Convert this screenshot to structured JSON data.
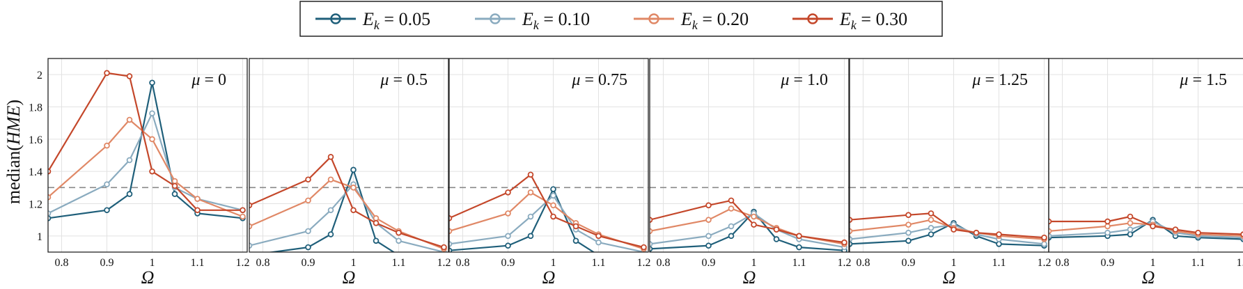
{
  "legend": {
    "placement": "top-center",
    "entries": [
      {
        "var": "E",
        "sub": "k",
        "eq": " = ",
        "val": "0.05",
        "color": "#1f5f7a"
      },
      {
        "var": "E",
        "sub": "k",
        "eq": " = ",
        "val": "0.10",
        "color": "#8aabbf"
      },
      {
        "var": "E",
        "sub": "k",
        "eq": " = ",
        "val": "0.20",
        "color": "#e08866"
      },
      {
        "var": "E",
        "sub": "k",
        "eq": " = ",
        "val": "0.30",
        "color": "#c4472a"
      }
    ]
  },
  "ylabel": {
    "pre": "median(",
    "italic": "HME",
    "post": ")"
  },
  "chart_data": [
    {
      "type": "line",
      "panel_label": "μ = 0",
      "xlabel": "Ω",
      "xlim": [
        0.77,
        1.21
      ],
      "ylim": [
        0.9,
        2.1
      ],
      "xticks": [
        "0.8",
        "0.9",
        "1",
        "1.1",
        "1.2"
      ],
      "yticks": [
        "1",
        "1.2",
        "1.4",
        "1.6",
        "1.8",
        "2"
      ],
      "reference_line": 1.3,
      "grid": true,
      "x": [
        0.77,
        0.9,
        0.95,
        1.0,
        1.05,
        1.1,
        1.2
      ],
      "series": [
        {
          "values": [
            1.11,
            1.16,
            1.26,
            1.95,
            1.26,
            1.14,
            1.11
          ]
        },
        {
          "values": [
            1.14,
            1.32,
            1.47,
            1.76,
            1.3,
            1.23,
            1.16
          ]
        },
        {
          "values": [
            1.24,
            1.56,
            1.72,
            1.6,
            1.34,
            1.23,
            1.12
          ]
        },
        {
          "values": [
            1.4,
            2.01,
            1.99,
            1.4,
            1.31,
            1.16,
            1.16
          ]
        }
      ]
    },
    {
      "type": "line",
      "panel_label": "μ = 0.5",
      "xlabel": "Ω",
      "xlim": [
        0.77,
        1.21
      ],
      "ylim": [
        0.9,
        2.1
      ],
      "xticks": [
        "0.8",
        "0.9",
        "1",
        "1.1",
        "1.2"
      ],
      "reference_line": 1.3,
      "grid": true,
      "x": [
        0.77,
        0.9,
        0.95,
        1.0,
        1.05,
        1.1,
        1.2
      ],
      "series": [
        {
          "values": [
            0.88,
            0.93,
            1.01,
            1.41,
            0.97,
            0.88,
            0.85
          ]
        },
        {
          "values": [
            0.94,
            1.03,
            1.16,
            1.32,
            1.08,
            0.97,
            0.9
          ]
        },
        {
          "values": [
            1.06,
            1.22,
            1.35,
            1.3,
            1.11,
            1.03,
            0.92
          ]
        },
        {
          "values": [
            1.19,
            1.35,
            1.49,
            1.16,
            1.08,
            1.02,
            0.93
          ]
        }
      ]
    },
    {
      "type": "line",
      "panel_label": "μ = 0.75",
      "xlabel": "Ω",
      "xlim": [
        0.77,
        1.21
      ],
      "ylim": [
        0.9,
        2.1
      ],
      "xticks": [
        "0.8",
        "0.9",
        "1",
        "1.1",
        "1.2"
      ],
      "reference_line": 1.3,
      "grid": true,
      "x": [
        0.77,
        0.9,
        0.95,
        1.0,
        1.05,
        1.1,
        1.2
      ],
      "series": [
        {
          "values": [
            0.91,
            0.94,
            1.0,
            1.29,
            0.97,
            0.88,
            0.85
          ]
        },
        {
          "values": [
            0.95,
            1.0,
            1.12,
            1.25,
            1.04,
            0.96,
            0.9
          ]
        },
        {
          "values": [
            1.03,
            1.14,
            1.27,
            1.19,
            1.08,
            1.01,
            0.92
          ]
        },
        {
          "values": [
            1.11,
            1.27,
            1.38,
            1.12,
            1.06,
            1.0,
            0.93
          ]
        }
      ]
    },
    {
      "type": "line",
      "panel_label": "μ = 1.0",
      "xlabel": "Ω",
      "xlim": [
        0.77,
        1.21
      ],
      "ylim": [
        0.9,
        2.1
      ],
      "xticks": [
        "0.8",
        "0.9",
        "1",
        "1.1",
        "1.2"
      ],
      "reference_line": 1.3,
      "grid": true,
      "x": [
        0.77,
        0.9,
        0.95,
        1.0,
        1.05,
        1.1,
        1.2
      ],
      "series": [
        {
          "values": [
            0.92,
            0.94,
            1.0,
            1.15,
            0.98,
            0.93,
            0.91
          ]
        },
        {
          "values": [
            0.95,
            1.0,
            1.06,
            1.14,
            1.04,
            0.98,
            0.93
          ]
        },
        {
          "values": [
            1.03,
            1.1,
            1.17,
            1.12,
            1.05,
            1.0,
            0.95
          ]
        },
        {
          "values": [
            1.1,
            1.19,
            1.22,
            1.07,
            1.04,
            1.0,
            0.96
          ]
        }
      ]
    },
    {
      "type": "line",
      "panel_label": "μ = 1.25",
      "xlabel": "Ω",
      "xlim": [
        0.77,
        1.21
      ],
      "ylim": [
        0.9,
        2.1
      ],
      "xticks": [
        "0.8",
        "0.9",
        "1",
        "1.1",
        "1.2"
      ],
      "reference_line": 1.3,
      "grid": true,
      "x": [
        0.77,
        0.9,
        0.95,
        1.0,
        1.05,
        1.1,
        1.2
      ],
      "series": [
        {
          "values": [
            0.95,
            0.97,
            1.01,
            1.08,
            1.0,
            0.95,
            0.94
          ]
        },
        {
          "values": [
            0.98,
            1.02,
            1.05,
            1.07,
            1.01,
            0.98,
            0.95
          ]
        },
        {
          "values": [
            1.03,
            1.07,
            1.1,
            1.05,
            1.02,
            1.0,
            0.98
          ]
        },
        {
          "values": [
            1.1,
            1.13,
            1.14,
            1.04,
            1.02,
            1.01,
            0.99
          ]
        }
      ]
    },
    {
      "type": "line",
      "panel_label": "μ = 1.5",
      "xlabel": "Ω",
      "xlim": [
        0.77,
        1.21
      ],
      "ylim": [
        0.9,
        2.1
      ],
      "xticks": [
        "0.8",
        "0.9",
        "1",
        "1.1",
        "1.2"
      ],
      "reference_line": 1.3,
      "grid": true,
      "x": [
        0.77,
        0.9,
        0.95,
        1.0,
        1.05,
        1.1,
        1.2
      ],
      "series": [
        {
          "values": [
            0.99,
            1.0,
            1.01,
            1.1,
            1.0,
            0.99,
            0.98
          ]
        },
        {
          "values": [
            1.0,
            1.02,
            1.04,
            1.09,
            1.02,
            1.0,
            0.99
          ]
        },
        {
          "values": [
            1.03,
            1.06,
            1.08,
            1.07,
            1.03,
            1.01,
            1.0
          ]
        },
        {
          "values": [
            1.09,
            1.09,
            1.12,
            1.06,
            1.04,
            1.02,
            1.01
          ]
        }
      ]
    }
  ]
}
